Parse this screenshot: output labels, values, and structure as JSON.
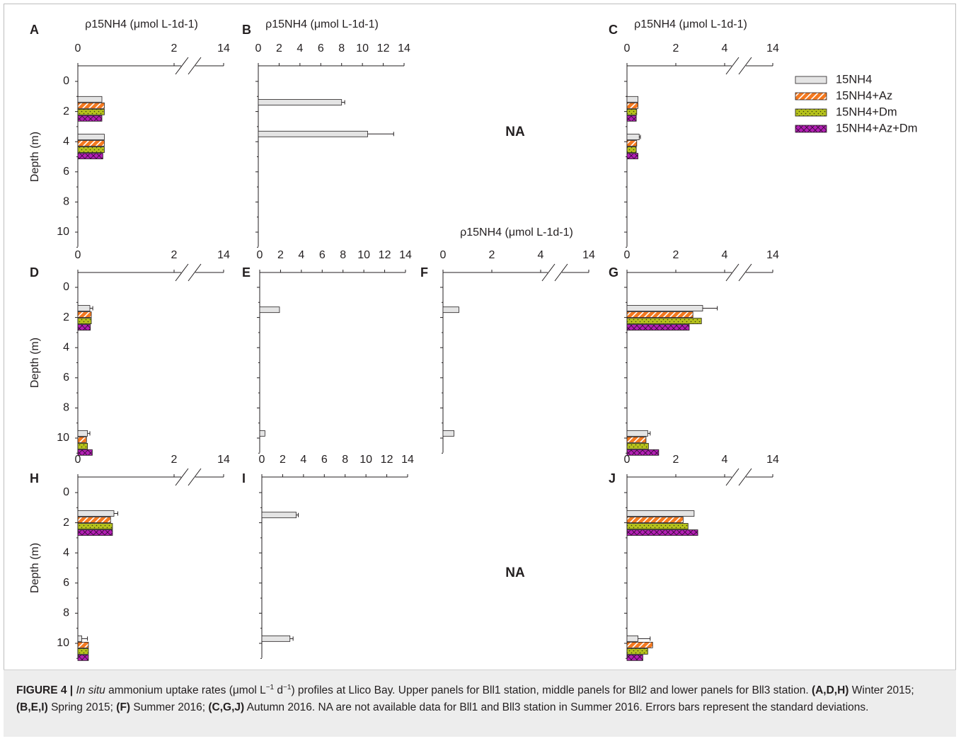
{
  "colors": {
    "15NH4": "#e4e4e4",
    "15NH4+Az": "#f47920",
    "15NH4+Az+Dm": "#b31fb5",
    "15NH4+Dm": "#b5c21c",
    "axis": "#231f20",
    "caption_bg": "#ededed"
  },
  "caption": {
    "label": "FIGURE 4 |",
    "part1_italic": "In situ",
    "part2": " ammonium uptake rates (μmol L",
    "sup1": "−1",
    "part3": " d",
    "sup2": "−1",
    "part4": ") profiles at Llico Bay. Upper panels for Bll1 station, middle panels for Bll2 and lower panels for Bll3 station. ",
    "b1": "(A,D,H)",
    "t1": " Winter 2015; ",
    "b2": "(B,E,I)",
    "t2": " Spring 2015; ",
    "b3": "(F)",
    "t3": " Summer 2016; ",
    "b4": "(C,G,J)",
    "t4": " Autumn 2016. NA are not available data for Bll1 and Bll3 station in Summer 2016. Errors bars represent the standard deviations."
  },
  "chart_data": {
    "type": "bar",
    "orientation": "horizontal",
    "x_axis_title": "ρ15NH4 (μmol L-1d-1)",
    "y_axis_title": "Depth (m)",
    "y_ticks": [
      "0",
      "2",
      "4",
      "6",
      "8",
      "10"
    ],
    "ylim": [
      0,
      11
    ],
    "legend": [
      "15NH4",
      "15NH4+Az",
      "15NH4+Dm",
      "15NH4+Az+Dm"
    ],
    "legend_position": "top-right",
    "na_label": "NA",
    "broken_ticks": [
      "0",
      "2",
      "14"
    ],
    "plain_ticks": [
      "0",
      "2",
      "4",
      "6",
      "8",
      "10",
      "12",
      "14"
    ],
    "panels": [
      {
        "label": "A",
        "axis": "broken",
        "xlim": [
          0,
          2.3
        ],
        "show_title": true,
        "show_ylabel": true,
        "groups": [
          {
            "depth": 1,
            "values": [
              0.5,
              0.55,
              0.55,
              0.5
            ],
            "errors": [
              0,
              0,
              0,
              0
            ]
          },
          {
            "depth": 3.5,
            "values": [
              0.55,
              0.55,
              0.55,
              0.52
            ],
            "errors": [
              0,
              0,
              0,
              0
            ]
          }
        ]
      },
      {
        "label": "B",
        "axis": "plain",
        "xlim": [
          0,
          14
        ],
        "show_title": true,
        "show_ylabel": false,
        "groups": [
          {
            "depth": 1.2,
            "values": [
              8.0
            ],
            "errors": [
              0.3
            ]
          },
          {
            "depth": 3.3,
            "values": [
              10.5
            ],
            "errors": [
              2.5
            ]
          }
        ]
      },
      {
        "label": "C",
        "axis": "broken4",
        "xlim": [
          0,
          4.6
        ],
        "show_title": true,
        "show_ylabel": false,
        "groups": [
          {
            "depth": 1,
            "values": [
              0.45,
              0.45,
              0.4,
              0.38
            ],
            "errors": [
              0,
              0,
              0,
              0
            ]
          },
          {
            "depth": 3.5,
            "values": [
              0.5,
              0.4,
              0.38,
              0.45
            ],
            "errors": [
              0.05,
              0,
              0,
              0
            ]
          }
        ]
      },
      {
        "label": "D",
        "axis": "broken",
        "xlim": [
          0,
          2.3
        ],
        "show_title": false,
        "show_ylabel": true,
        "groups": [
          {
            "depth": 1.2,
            "values": [
              0.25,
              0.28,
              0.28,
              0.26
            ],
            "errors": [
              0.06,
              0,
              0,
              0
            ]
          },
          {
            "depth": 9.5,
            "values": [
              0.2,
              0.18,
              0.2,
              0.3
            ],
            "errors": [
              0.05,
              0,
              0,
              0
            ]
          }
        ]
      },
      {
        "label": "E",
        "axis": "plain",
        "xlim": [
          0,
          14
        ],
        "show_title": false,
        "show_ylabel": false,
        "groups": [
          {
            "depth": 1.3,
            "values": [
              1.9
            ],
            "errors": [
              0
            ]
          },
          {
            "depth": 9.5,
            "values": [
              0.5
            ],
            "errors": [
              0
            ]
          }
        ]
      },
      {
        "label": "F",
        "axis": "broken4",
        "xlim": [
          0,
          4.6
        ],
        "show_title": true,
        "show_ylabel": false,
        "groups": [
          {
            "depth": 1.3,
            "values": [
              0.65
            ],
            "errors": [
              0
            ]
          },
          {
            "depth": 9.5,
            "values": [
              0.45
            ],
            "errors": [
              0
            ]
          }
        ]
      },
      {
        "label": "G",
        "axis": "broken4",
        "xlim": [
          0,
          4.6
        ],
        "show_title": false,
        "show_ylabel": false,
        "groups": [
          {
            "depth": 1.2,
            "values": [
              3.1,
              2.7,
              3.05,
              2.55
            ],
            "errors": [
              0.6,
              0,
              0,
              0
            ]
          },
          {
            "depth": 9.5,
            "values": [
              0.85,
              0.78,
              0.88,
              1.3
            ],
            "errors": [
              0.1,
              0,
              0,
              0
            ]
          }
        ]
      },
      {
        "label": "H",
        "axis": "broken",
        "xlim": [
          0,
          2.3
        ],
        "show_title": false,
        "show_ylabel": true,
        "groups": [
          {
            "depth": 1.2,
            "values": [
              0.75,
              0.68,
              0.72,
              0.72
            ],
            "errors": [
              0.08,
              0,
              0,
              0
            ]
          },
          {
            "depth": 9.5,
            "values": [
              0.08,
              0.22,
              0.22,
              0.22
            ],
            "errors": [
              0.12,
              0,
              0,
              0
            ]
          }
        ]
      },
      {
        "label": "I",
        "axis": "plain",
        "xlim": [
          0,
          14
        ],
        "show_title": false,
        "show_ylabel": false,
        "groups": [
          {
            "depth": 1.3,
            "values": [
              3.3
            ],
            "errors": [
              0.2
            ]
          },
          {
            "depth": 9.5,
            "values": [
              2.7
            ],
            "errors": [
              0.3
            ]
          }
        ]
      },
      {
        "label": "J",
        "axis": "broken4",
        "xlim": [
          0,
          4.6
        ],
        "show_title": false,
        "show_ylabel": false,
        "groups": [
          {
            "depth": 1.2,
            "values": [
              2.75,
              2.3,
              2.5,
              2.9
            ],
            "errors": [
              0,
              0,
              0,
              0
            ]
          },
          {
            "depth": 9.5,
            "values": [
              0.45,
              1.05,
              0.85,
              0.65
            ],
            "errors": [
              0.5,
              0,
              0,
              0
            ]
          }
        ]
      }
    ],
    "na_panels": [
      "row1-col3",
      "row3-col3"
    ]
  }
}
